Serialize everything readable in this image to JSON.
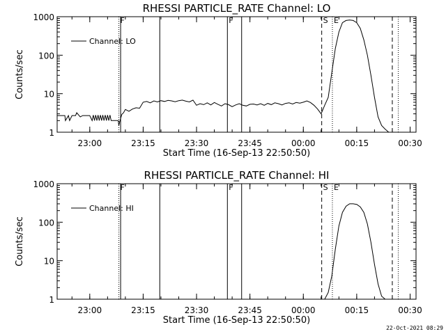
{
  "footer": {
    "date_stamp": "22-Oct-2021 08:29"
  },
  "chart_data": [
    {
      "type": "line",
      "title": "RHESSI PARTICLE_RATE Channel: LO",
      "xlabel": "Start Time (16-Sep-13 22:50:50)",
      "ylabel": "Counts/sec",
      "xlim": [
        "22:50:50",
        "00:31:40"
      ],
      "ylim": [
        1,
        1000
      ],
      "yscale": "log",
      "x_ticks": [
        "23:00",
        "23:15",
        "23:30",
        "23:45",
        "00:00",
        "00:15",
        "00:30"
      ],
      "y_ticks": [
        "1",
        "10",
        "100",
        "1000"
      ],
      "grid": false,
      "legend_position": "top-left",
      "series": [
        {
          "name": "Channel: LO",
          "x": [
            "22:50:50",
            "22:52:00",
            "22:53:00",
            "22:53:10",
            "22:54:00",
            "22:54:20",
            "22:55:00",
            "22:55:20",
            "22:56:00",
            "22:56:20",
            "22:57:00",
            "22:57:20",
            "22:58:00",
            "22:58:20",
            "22:59:00",
            "22:59:20",
            "23:00:00",
            "23:00:40",
            "23:01:00",
            "23:01:20",
            "23:01:40",
            "23:02:00",
            "23:02:20",
            "23:02:40",
            "23:03:00",
            "23:03:20",
            "23:03:40",
            "23:04:00",
            "23:04:20",
            "23:04:40",
            "23:05:00",
            "23:05:20",
            "23:05:40",
            "23:06:00",
            "23:06:20",
            "23:06:40",
            "23:07:00",
            "23:07:20",
            "23:07:40",
            "23:08:00",
            "23:08:10",
            "23:08:30",
            "23:09:00",
            "23:09:30",
            "23:10:00",
            "23:11:00",
            "23:12:00",
            "23:13:00",
            "23:14:00",
            "23:15:00",
            "23:16:00",
            "23:17:00",
            "23:18:00",
            "23:19:00",
            "23:20:00",
            "23:21:00",
            "23:22:00",
            "23:23:00",
            "23:24:00",
            "23:25:00",
            "23:26:00",
            "23:27:00",
            "23:28:00",
            "23:29:00",
            "23:30:00",
            "23:31:00",
            "23:32:00",
            "23:33:00",
            "23:34:00",
            "23:35:00",
            "23:36:00",
            "23:37:00",
            "23:38:00",
            "23:39:00",
            "23:40:00",
            "23:41:00",
            "23:42:00",
            "23:43:00",
            "23:44:00",
            "23:45:00",
            "23:46:00",
            "23:47:00",
            "23:48:00",
            "23:49:00",
            "23:50:00",
            "23:51:00",
            "23:52:00",
            "23:53:00",
            "23:54:00",
            "23:55:00",
            "23:56:00",
            "23:57:00",
            "23:58:00",
            "23:59:00",
            "00:00:00",
            "00:01:00",
            "00:02:00",
            "00:03:00",
            "00:04:00",
            "00:05:00",
            "00:06:00",
            "00:07:00",
            "00:08:00",
            "00:09:00",
            "00:10:00",
            "00:11:00",
            "00:12:00",
            "00:13:00",
            "00:14:00",
            "00:15:00",
            "00:16:00",
            "00:17:00",
            "00:18:00",
            "00:19:00",
            "00:20:00",
            "00:21:00",
            "00:22:00",
            "00:23:00",
            "00:24:00",
            "00:24:40"
          ],
          "values": [
            2.7,
            2.7,
            2.7,
            2.0,
            2.7,
            2.0,
            2.7,
            2.7,
            2.7,
            3.2,
            2.7,
            2.5,
            2.7,
            2.7,
            2.7,
            2.7,
            2.7,
            2.0,
            2.8,
            2.0,
            2.8,
            2.0,
            2.8,
            2.0,
            2.8,
            2.0,
            2.8,
            2.0,
            2.8,
            2.0,
            2.8,
            2.0,
            2.8,
            2.0,
            2.0,
            2.0,
            2.0,
            2.0,
            2.0,
            2.0,
            1.5,
            2.0,
            2.9,
            3.2,
            3.9,
            3.5,
            4.0,
            4.3,
            4.2,
            6.0,
            6.3,
            5.8,
            6.5,
            6.1,
            6.6,
            6.3,
            6.7,
            6.5,
            6.2,
            6.6,
            6.8,
            6.4,
            6.1,
            6.8,
            5.0,
            5.5,
            5.2,
            5.8,
            5.1,
            5.9,
            5.3,
            4.8,
            5.5,
            5.2,
            4.6,
            5.1,
            5.5,
            5.0,
            4.8,
            5.3,
            5.4,
            5.1,
            5.5,
            5.0,
            5.6,
            5.2,
            5.8,
            5.5,
            5.1,
            5.6,
            5.8,
            5.4,
            5.9,
            5.7,
            6.0,
            6.5,
            5.9,
            5.0,
            4.0,
            3.0,
            5.0,
            8.0,
            35,
            150,
            400,
            700,
            800,
            820,
            800,
            700,
            500,
            250,
            100,
            30,
            8,
            2.5,
            1.5,
            1.2,
            1.0,
            1.0
          ]
        }
      ],
      "annotations": [
        {
          "label": "F",
          "time": "23:08:10",
          "style": "dotted"
        },
        {
          "label": "",
          "time": "23:08:40",
          "style": "solid"
        },
        {
          "label": "",
          "time": "23:19:40",
          "style": "solid"
        },
        {
          "label": "F",
          "time": "23:38:40",
          "style": "solid"
        },
        {
          "label": "",
          "time": "23:42:40",
          "style": "solid"
        },
        {
          "label": "S",
          "time": "00:05:10",
          "style": "dashed"
        },
        {
          "label": "E",
          "time": "00:08:10",
          "style": "dotted"
        },
        {
          "label": "",
          "time": "00:25:00",
          "style": "dashed"
        },
        {
          "label": "",
          "time": "00:26:40",
          "style": "dotted"
        }
      ]
    },
    {
      "type": "line",
      "title": "RHESSI PARTICLE_RATE Channel: HI",
      "xlabel": "Start Time (16-Sep-13 22:50:50)",
      "ylabel": "Counts/sec",
      "xlim": [
        "22:50:50",
        "00:31:40"
      ],
      "ylim": [
        1,
        1000
      ],
      "yscale": "log",
      "x_ticks": [
        "23:00",
        "23:15",
        "23:30",
        "23:45",
        "00:00",
        "00:15",
        "00:30"
      ],
      "y_ticks": [
        "1",
        "10",
        "100",
        "1000"
      ],
      "grid": false,
      "legend_position": "top-left",
      "series": [
        {
          "name": "Channel: HI",
          "x": [
            "00:06:00",
            "00:07:00",
            "00:08:00",
            "00:09:00",
            "00:10:00",
            "00:11:00",
            "00:12:00",
            "00:13:00",
            "00:14:00",
            "00:15:00",
            "00:16:00",
            "00:17:00",
            "00:18:00",
            "00:19:00",
            "00:20:00",
            "00:21:00",
            "00:22:00",
            "00:23:00",
            "00:24:00"
          ],
          "values": [
            1.0,
            1.5,
            4,
            20,
            80,
            180,
            260,
            300,
            300,
            290,
            250,
            180,
            90,
            30,
            8,
            2.5,
            1.2,
            1.0,
            1.0
          ]
        }
      ],
      "annotations": [
        {
          "label": "F",
          "time": "23:08:10",
          "style": "dotted"
        },
        {
          "label": "",
          "time": "23:08:40",
          "style": "solid"
        },
        {
          "label": "",
          "time": "23:19:40",
          "style": "solid"
        },
        {
          "label": "F",
          "time": "23:38:40",
          "style": "solid"
        },
        {
          "label": "",
          "time": "23:42:40",
          "style": "solid"
        },
        {
          "label": "S",
          "time": "00:05:10",
          "style": "dashed"
        },
        {
          "label": "E",
          "time": "00:08:10",
          "style": "dotted"
        },
        {
          "label": "",
          "time": "00:25:00",
          "style": "dashed"
        },
        {
          "label": "",
          "time": "00:26:40",
          "style": "dotted"
        }
      ]
    }
  ]
}
